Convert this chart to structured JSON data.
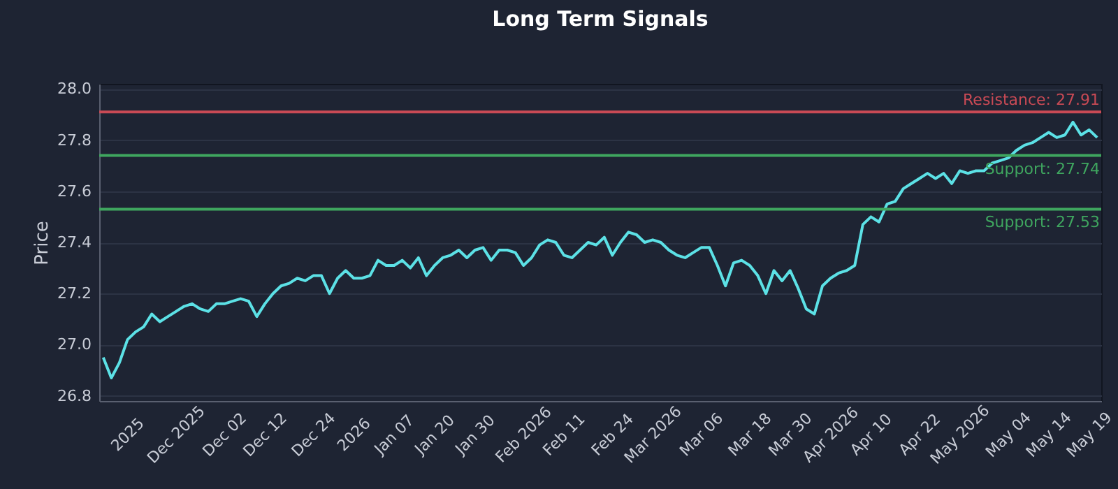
{
  "chart_data": {
    "type": "line",
    "title": "Long Term Signals",
    "ylabel": "Price",
    "categories": [
      null,
      null,
      null,
      "2025",
      null,
      null,
      null,
      null,
      null,
      "Dec 2025",
      null,
      null,
      null,
      null,
      null,
      "Dec 02",
      null,
      null,
      null,
      null,
      "Dec 12",
      null,
      null,
      null,
      null,
      null,
      "Dec 24",
      null,
      null,
      null,
      null,
      "2026",
      null,
      null,
      null,
      null,
      "Jan 07",
      null,
      null,
      null,
      null,
      "Jan 20",
      null,
      null,
      null,
      null,
      "Jan 30",
      null,
      null,
      null,
      null,
      null,
      "Feb 2026",
      null,
      null,
      null,
      null,
      "Feb 11",
      null,
      null,
      null,
      null,
      null,
      "Feb 24",
      null,
      null,
      null,
      null,
      "Mar 2026",
      null,
      null,
      null,
      null,
      null,
      "Mar 06",
      null,
      null,
      null,
      null,
      null,
      "Mar 18",
      null,
      null,
      null,
      null,
      "Mar 30",
      null,
      null,
      null,
      null,
      "Apr 2026",
      null,
      null,
      null,
      null,
      "Apr 10",
      null,
      null,
      null,
      null,
      null,
      "Apr 22",
      null,
      null,
      null,
      null,
      "May 2026",
      null,
      null,
      null,
      null,
      null,
      "May 04",
      null,
      null,
      null,
      null,
      "May 14",
      null,
      null,
      null,
      null,
      "May 19",
      null
    ],
    "series": [
      {
        "color": "#5ce1e6",
        "values": [
          26.95,
          26.87,
          26.93,
          27.02,
          27.05,
          27.07,
          27.12,
          27.09,
          27.11,
          27.13,
          27.15,
          27.16,
          27.14,
          27.13,
          27.16,
          27.16,
          27.17,
          27.18,
          27.17,
          27.11,
          27.16,
          27.2,
          27.23,
          27.24,
          27.26,
          27.25,
          27.27,
          27.27,
          27.2,
          27.26,
          27.29,
          27.26,
          27.26,
          27.27,
          27.33,
          27.31,
          27.31,
          27.33,
          27.3,
          27.34,
          27.27,
          27.31,
          27.34,
          27.35,
          27.37,
          27.34,
          27.37,
          27.38,
          27.33,
          27.37,
          27.37,
          27.36,
          27.31,
          27.34,
          27.39,
          27.41,
          27.4,
          27.35,
          27.34,
          27.37,
          27.4,
          27.39,
          27.42,
          27.35,
          27.4,
          27.44,
          27.43,
          27.4,
          27.41,
          27.4,
          27.37,
          27.35,
          27.34,
          27.36,
          27.38,
          27.38,
          27.31,
          27.23,
          27.32,
          27.33,
          27.31,
          27.27,
          27.2,
          27.29,
          27.25,
          27.29,
          27.22,
          27.14,
          27.12,
          27.23,
          27.26,
          27.28,
          27.29,
          27.31,
          27.47,
          27.5,
          27.48,
          27.55,
          27.56,
          27.61,
          27.63,
          27.65,
          27.67,
          27.65,
          27.67,
          27.63,
          27.68,
          27.67,
          27.68,
          27.68,
          27.71,
          27.72,
          27.73,
          27.76,
          27.78,
          27.79,
          27.81,
          27.83,
          27.81,
          27.82,
          27.87,
          27.82,
          27.84,
          27.81
        ]
      }
    ],
    "ylim": [
      26.78,
      28.02
    ],
    "yticks": [
      {
        "value": 26.8,
        "label": "26.8"
      },
      {
        "value": 27.0,
        "label": "27.0"
      },
      {
        "value": 27.2,
        "label": "27.2"
      },
      {
        "value": 27.4,
        "label": "27.4"
      },
      {
        "value": 27.6,
        "label": "27.6"
      },
      {
        "value": 27.8,
        "label": "27.8"
      },
      {
        "value": 28.0,
        "label": "28.0"
      }
    ],
    "ref_lines": [
      {
        "axis": "y",
        "value": 27.91,
        "label": "Resistance: 27.91",
        "color": "#c94a55"
      },
      {
        "axis": "y",
        "value": 27.74,
        "label": "Support: 27.74",
        "color": "#3fa65f"
      },
      {
        "axis": "y",
        "value": 27.53,
        "label": "Support: 27.53",
        "color": "#3fa65f"
      }
    ],
    "grid": "y",
    "marker": "none",
    "line_style": "solid"
  }
}
